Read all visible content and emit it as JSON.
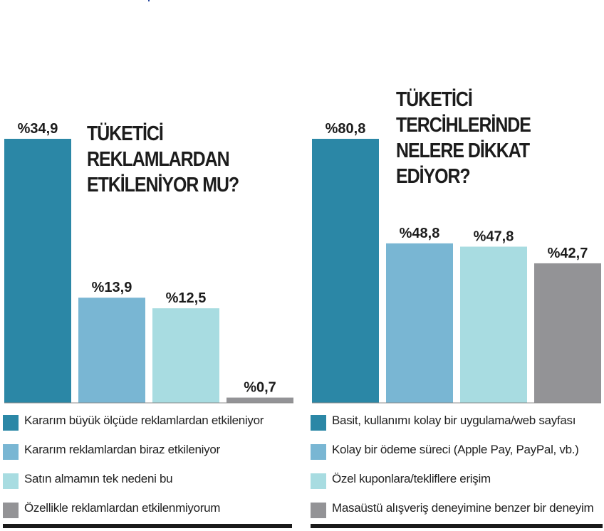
{
  "chart_data": [
    {
      "type": "bar",
      "title_lines": [
        "TÜKETİCİ",
        "REKLAMLARDAN",
        "ETKİLENİYOR MU?"
      ],
      "categories": [
        "Kararım büyük ölçüde reklamlardan etkileniyor",
        "Kararım reklamlardan biraz etkileniyor",
        "Satın almamın tek nedeni bu",
        "Özellikle reklamlardan etkilenmiyorum"
      ],
      "values": [
        34.9,
        13.9,
        12.5,
        0.7
      ],
      "value_labels": [
        "%34,9",
        "%13,9",
        "%12,5",
        "%0,7"
      ],
      "colors": [
        "#2b87a6",
        "#79b6d3",
        "#a8dce1",
        "#939396"
      ],
      "ylim": [
        0,
        34.9
      ],
      "grid": false,
      "legend": "bottom"
    },
    {
      "type": "bar",
      "title_lines": [
        "TÜKETİCİ",
        "TERCİHLERİNDE",
        "NELERE DİKKAT",
        "EDİYOR?"
      ],
      "categories": [
        "Basit, kullanımı kolay bir uygulama/web sayfası",
        "Kolay bir ödeme süreci (Apple Pay, PayPal, vb.)",
        "Özel kuponlara/tekliflere erişim",
        "Masaüstü alışveriş deneyimine benzer bir deneyim"
      ],
      "values": [
        80.8,
        48.8,
        47.8,
        42.7
      ],
      "value_labels": [
        "%80,8",
        "%48,8",
        "%47,8",
        "%42,7"
      ],
      "colors": [
        "#2b87a6",
        "#79b6d3",
        "#a8dce1",
        "#939396"
      ],
      "ylim": [
        0,
        80.8
      ],
      "grid": false,
      "legend": "bottom"
    }
  ]
}
